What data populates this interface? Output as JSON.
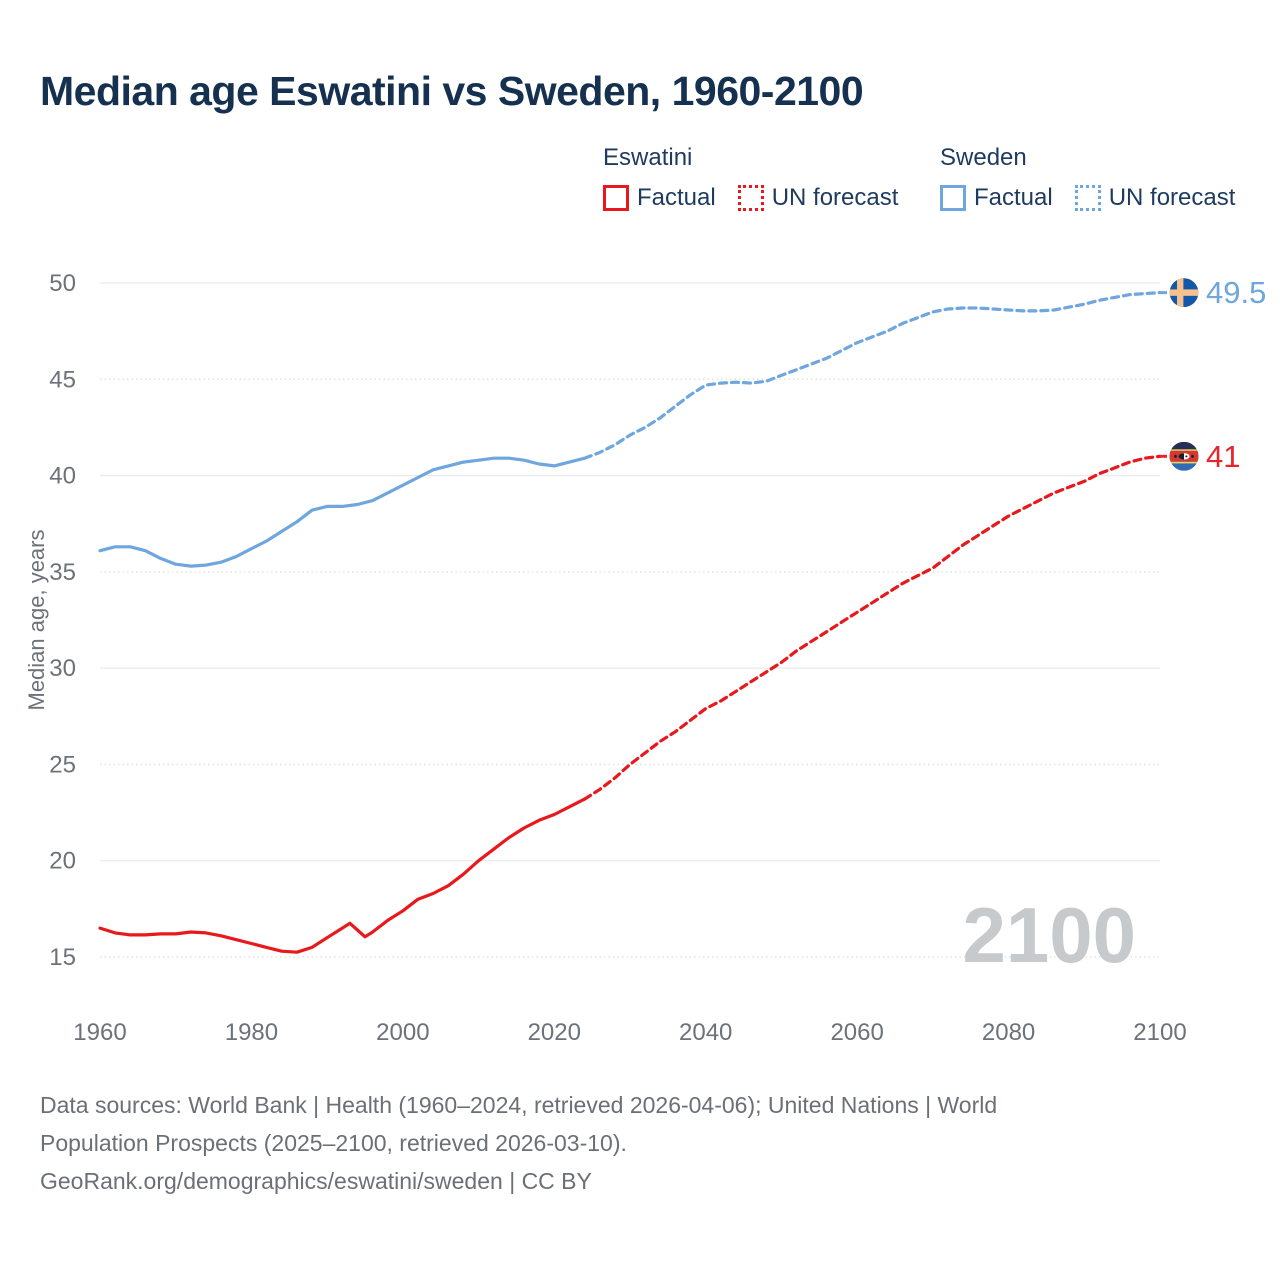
{
  "title": "Median age Eswatini vs Sweden, 1960-2100",
  "legend": {
    "groups": [
      {
        "country": "Eswatini",
        "color": "#E8191D",
        "items": [
          {
            "label": "Factual",
            "style": "solid"
          },
          {
            "label": "UN forecast",
            "style": "dotted"
          }
        ]
      },
      {
        "country": "Sweden",
        "color": "#6FA6DE",
        "items": [
          {
            "label": "Factual",
            "style": "solid"
          },
          {
            "label": "UN forecast",
            "style": "dotted"
          }
        ]
      }
    ]
  },
  "chart_data": {
    "type": "line",
    "title": "Median age Eswatini vs Sweden, 1960-2100",
    "xlabel": "",
    "ylabel": "Median age, years",
    "xlim": [
      1960,
      2100
    ],
    "ylim": [
      15,
      50
    ],
    "x_ticks": [
      1960,
      1980,
      2000,
      2020,
      2040,
      2060,
      2080,
      2100
    ],
    "y_ticks": [
      15,
      20,
      25,
      30,
      35,
      40,
      45,
      50
    ],
    "grid": "on",
    "legend_position": "top",
    "watermark": "2100",
    "series": [
      {
        "name": "Eswatini Factual",
        "color": "#E8191D",
        "dash": "solid",
        "points": [
          [
            1960,
            16.5
          ],
          [
            1962,
            16.25
          ],
          [
            1964,
            16.15
          ],
          [
            1966,
            16.15
          ],
          [
            1968,
            16.2
          ],
          [
            1970,
            16.2
          ],
          [
            1972,
            16.3
          ],
          [
            1974,
            16.25
          ],
          [
            1976,
            16.1
          ],
          [
            1978,
            15.9
          ],
          [
            1980,
            15.7
          ],
          [
            1982,
            15.5
          ],
          [
            1984,
            15.3
          ],
          [
            1986,
            15.25
          ],
          [
            1988,
            15.5
          ],
          [
            1990,
            16.0
          ],
          [
            1992,
            16.5
          ],
          [
            1993,
            16.75
          ],
          [
            1994,
            16.4
          ],
          [
            1995,
            16.05
          ],
          [
            1996,
            16.3
          ],
          [
            1998,
            16.9
          ],
          [
            2000,
            17.4
          ],
          [
            2002,
            18.0
          ],
          [
            2004,
            18.3
          ],
          [
            2006,
            18.7
          ],
          [
            2008,
            19.3
          ],
          [
            2010,
            20.0
          ],
          [
            2012,
            20.6
          ],
          [
            2014,
            21.2
          ],
          [
            2016,
            21.7
          ],
          [
            2018,
            22.1
          ],
          [
            2020,
            22.4
          ],
          [
            2022,
            22.8
          ],
          [
            2024,
            23.2
          ]
        ]
      },
      {
        "name": "Eswatini UN forecast",
        "color": "#E8191D",
        "dash": "dashed",
        "points": [
          [
            2024,
            23.2
          ],
          [
            2026,
            23.7
          ],
          [
            2028,
            24.3
          ],
          [
            2030,
            25.0
          ],
          [
            2032,
            25.6
          ],
          [
            2034,
            26.2
          ],
          [
            2036,
            26.7
          ],
          [
            2038,
            27.3
          ],
          [
            2040,
            27.9
          ],
          [
            2042,
            28.3
          ],
          [
            2044,
            28.8
          ],
          [
            2046,
            29.3
          ],
          [
            2048,
            29.8
          ],
          [
            2050,
            30.3
          ],
          [
            2052,
            30.9
          ],
          [
            2054,
            31.4
          ],
          [
            2056,
            31.9
          ],
          [
            2058,
            32.4
          ],
          [
            2060,
            32.9
          ],
          [
            2062,
            33.4
          ],
          [
            2064,
            33.9
          ],
          [
            2066,
            34.4
          ],
          [
            2068,
            34.8
          ],
          [
            2070,
            35.2
          ],
          [
            2072,
            35.8
          ],
          [
            2074,
            36.4
          ],
          [
            2076,
            36.9
          ],
          [
            2078,
            37.4
          ],
          [
            2080,
            37.9
          ],
          [
            2082,
            38.3
          ],
          [
            2084,
            38.7
          ],
          [
            2086,
            39.1
          ],
          [
            2088,
            39.4
          ],
          [
            2090,
            39.7
          ],
          [
            2092,
            40.1
          ],
          [
            2094,
            40.4
          ],
          [
            2096,
            40.7
          ],
          [
            2098,
            40.9
          ],
          [
            2100,
            41.0
          ]
        ]
      },
      {
        "name": "Sweden Factual",
        "color": "#6FA6DE",
        "dash": "solid",
        "points": [
          [
            1960,
            36.1
          ],
          [
            1962,
            36.3
          ],
          [
            1964,
            36.3
          ],
          [
            1966,
            36.1
          ],
          [
            1968,
            35.7
          ],
          [
            1970,
            35.4
          ],
          [
            1972,
            35.3
          ],
          [
            1974,
            35.35
          ],
          [
            1976,
            35.5
          ],
          [
            1978,
            35.8
          ],
          [
            1980,
            36.2
          ],
          [
            1982,
            36.6
          ],
          [
            1984,
            37.1
          ],
          [
            1986,
            37.6
          ],
          [
            1988,
            38.2
          ],
          [
            1990,
            38.4
          ],
          [
            1992,
            38.4
          ],
          [
            1994,
            38.5
          ],
          [
            1996,
            38.7
          ],
          [
            1998,
            39.1
          ],
          [
            2000,
            39.5
          ],
          [
            2002,
            39.9
          ],
          [
            2004,
            40.3
          ],
          [
            2006,
            40.5
          ],
          [
            2008,
            40.7
          ],
          [
            2010,
            40.8
          ],
          [
            2012,
            40.9
          ],
          [
            2014,
            40.9
          ],
          [
            2016,
            40.8
          ],
          [
            2018,
            40.6
          ],
          [
            2020,
            40.5
          ],
          [
            2022,
            40.7
          ],
          [
            2024,
            40.9
          ]
        ]
      },
      {
        "name": "Sweden UN forecast",
        "color": "#6FA6DE",
        "dash": "dashed",
        "points": [
          [
            2024,
            40.9
          ],
          [
            2026,
            41.2
          ],
          [
            2028,
            41.6
          ],
          [
            2030,
            42.1
          ],
          [
            2032,
            42.5
          ],
          [
            2034,
            43.0
          ],
          [
            2036,
            43.6
          ],
          [
            2038,
            44.2
          ],
          [
            2040,
            44.7
          ],
          [
            2042,
            44.8
          ],
          [
            2044,
            44.85
          ],
          [
            2046,
            44.8
          ],
          [
            2048,
            44.9
          ],
          [
            2050,
            45.2
          ],
          [
            2052,
            45.5
          ],
          [
            2054,
            45.8
          ],
          [
            2056,
            46.1
          ],
          [
            2058,
            46.5
          ],
          [
            2060,
            46.9
          ],
          [
            2062,
            47.2
          ],
          [
            2064,
            47.5
          ],
          [
            2066,
            47.9
          ],
          [
            2068,
            48.2
          ],
          [
            2070,
            48.5
          ],
          [
            2072,
            48.65
          ],
          [
            2074,
            48.7
          ],
          [
            2076,
            48.7
          ],
          [
            2078,
            48.65
          ],
          [
            2080,
            48.6
          ],
          [
            2082,
            48.55
          ],
          [
            2084,
            48.55
          ],
          [
            2086,
            48.6
          ],
          [
            2088,
            48.75
          ],
          [
            2090,
            48.9
          ],
          [
            2092,
            49.1
          ],
          [
            2094,
            49.25
          ],
          [
            2096,
            49.4
          ],
          [
            2098,
            49.45
          ],
          [
            2100,
            49.5
          ]
        ]
      }
    ],
    "end_markers": [
      {
        "country": "Sweden",
        "flag": "sweden-flag",
        "value": 49.5,
        "label": "49.5",
        "label_color": "#6FA6DE"
      },
      {
        "country": "Eswatini",
        "flag": "eswatini-flag",
        "value": 41,
        "label": "41",
        "label_color": "#E6262B"
      }
    ]
  },
  "footer": {
    "lines": [
      "Data sources: World Bank | Health (1960–2024, retrieved 2026-04-06); United Nations | World",
      "Population Prospects (2025–2100, retrieved 2026-03-10).",
      "GeoRank.org/demographics/eswatini/sweden | CC BY"
    ]
  },
  "colors": {
    "title_text": "#16314F",
    "legend_text": "#1E3A5F",
    "axis_text": "#6C7278",
    "footer_text": "#6A7076",
    "watermark": "#C6CACD",
    "eswatini_line": "#E8191D",
    "sweden_line": "#6FA6DE",
    "gridline_solid": "#EBEBEB",
    "gridline_dotted": "#DEDEDE"
  }
}
